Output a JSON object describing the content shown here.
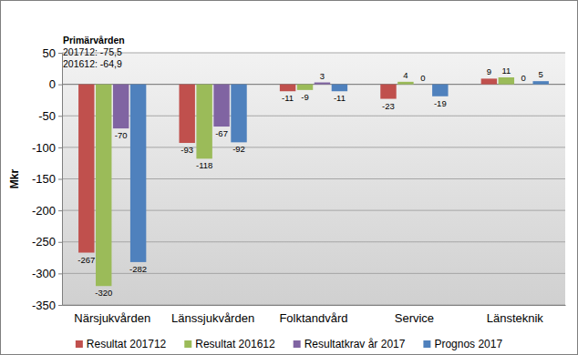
{
  "chart_data": {
    "type": "bar",
    "y_label": "Mkr",
    "annotations": [
      "Primärvården",
      "201712: -75,5",
      "201612: -64,9"
    ],
    "categories": [
      "Närsjukvården",
      "Länssjukvården",
      "Folktandvård",
      "Service",
      "Länsteknik"
    ],
    "series": [
      {
        "name": "Resultat 201712",
        "color": "#c0504d",
        "values": [
          -267,
          -93,
          -11,
          -23,
          9
        ]
      },
      {
        "name": "Resultat 201612",
        "color": "#9bbb59",
        "values": [
          -320,
          -118,
          -9,
          4,
          11
        ]
      },
      {
        "name": "Resultatkrav år 2017",
        "color": "#8064a2",
        "values": [
          -70,
          -67,
          3,
          0,
          0
        ]
      },
      {
        "name": "Prognos 2017",
        "color": "#4f81bd",
        "values": [
          -282,
          -92,
          -11,
          -19,
          5
        ]
      }
    ],
    "ylim": [
      -350,
      50
    ],
    "yticks": [
      -350,
      -300,
      -250,
      -200,
      -150,
      -100,
      -50,
      0,
      50
    ],
    "grid": true,
    "data_labels": true,
    "legend": "bottom"
  }
}
